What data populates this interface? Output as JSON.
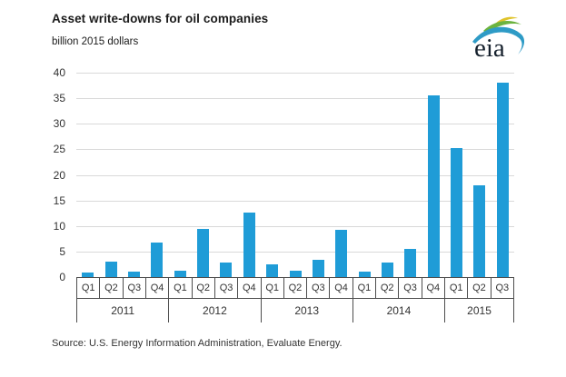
{
  "header": {
    "title": "Asset write-downs for oil companies",
    "subtitle": "billion 2015 dollars",
    "logo_text": "eia"
  },
  "source": "Source:  U.S. Energy Information Administration, Evaluate Energy.",
  "chart_data": {
    "type": "bar",
    "title": "Asset write-downs for oil companies",
    "xlabel": "",
    "ylabel": "billion 2015 dollars",
    "ylim": [
      0,
      40
    ],
    "ytick_step": 5,
    "grid": "horizontal",
    "legend": "none",
    "colors": {
      "bar": "#1f9cd7",
      "gridline": "#d9d9d9",
      "axis_border": "#4d4d4d",
      "text": "#333333",
      "logo_blue": "#2e9bc6",
      "logo_green": "#6cb33f",
      "logo_yellow": "#dfc32a"
    },
    "years": [
      {
        "year": "2011",
        "quarters": [
          "Q1",
          "Q2",
          "Q3",
          "Q4"
        ],
        "values": [
          0.8,
          3.0,
          1.1,
          6.8
        ]
      },
      {
        "year": "2012",
        "quarters": [
          "Q1",
          "Q2",
          "Q3",
          "Q4"
        ],
        "values": [
          1.2,
          9.5,
          2.8,
          12.6
        ]
      },
      {
        "year": "2013",
        "quarters": [
          "Q1",
          "Q2",
          "Q3",
          "Q4"
        ],
        "values": [
          2.5,
          1.2,
          3.4,
          9.2
        ]
      },
      {
        "year": "2014",
        "quarters": [
          "Q1",
          "Q2",
          "Q3",
          "Q4"
        ],
        "values": [
          1.1,
          2.9,
          5.5,
          35.6
        ]
      },
      {
        "year": "2015",
        "quarters": [
          "Q1",
          "Q2",
          "Q3"
        ],
        "values": [
          25.2,
          18.0,
          38.0
        ]
      }
    ]
  }
}
